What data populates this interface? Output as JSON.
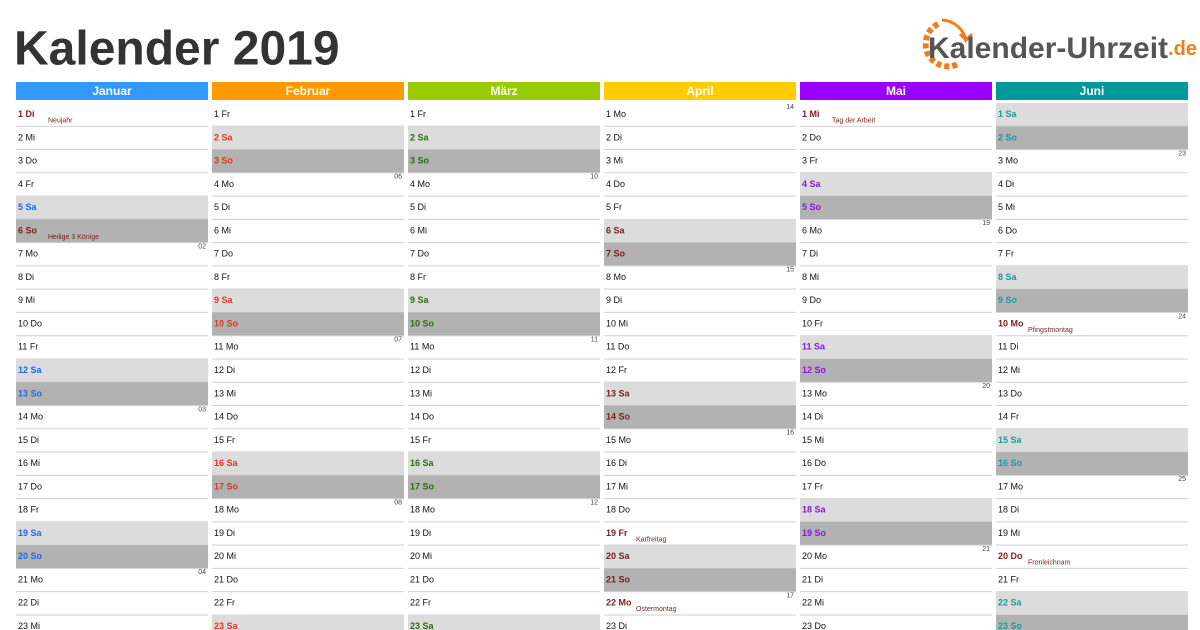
{
  "header": {
    "title": "Kalender 2019",
    "logo": "Kalender-Uhrzeit",
    "logo_suffix": ".de"
  },
  "months": [
    {
      "name": "Januar",
      "color": "#3399ff",
      "weekend_color": "#2266ee",
      "days": [
        "1 Di",
        "2 Mi",
        "3 Do",
        "4 Fr",
        "5 Sa",
        "6 So",
        "7 Mo",
        "8 Di",
        "9 Mi",
        "10 Do",
        "11 Fr",
        "12 Sa",
        "13 So",
        "14 Mo",
        "15 Di",
        "16 Mi",
        "17 Do",
        "18 Fr",
        "19 Sa",
        "20 So",
        "21 Mo",
        "22 Di",
        "23 Mi"
      ],
      "notes": {
        "0": "Neujahr",
        "5": "Heilige 3 Könige"
      },
      "weeks": {
        "6": "02",
        "13": "03",
        "20": "04"
      }
    },
    {
      "name": "Februar",
      "color": "#ff9900",
      "weekend_color": "#e8341c",
      "days": [
        "1 Fr",
        "2 Sa",
        "3 So",
        "4 Mo",
        "5 Di",
        "6 Mi",
        "7 Do",
        "8 Fr",
        "9 Sa",
        "10 So",
        "11 Mo",
        "12 Di",
        "13 Mi",
        "14 Do",
        "15 Fr",
        "16 Sa",
        "17 So",
        "18 Mo",
        "19 Di",
        "20 Mi",
        "21 Do",
        "22 Fr",
        "23 Sa"
      ],
      "notes": {},
      "weeks": {
        "3": "06",
        "10": "07",
        "17": "08"
      }
    },
    {
      "name": "März",
      "color": "#99cc00",
      "weekend_color": "#2e6b14",
      "days": [
        "1 Fr",
        "2 Sa",
        "3 So",
        "4 Mo",
        "5 Di",
        "6 Mi",
        "7 Do",
        "8 Fr",
        "9 Sa",
        "10 So",
        "11 Mo",
        "12 Di",
        "13 Mi",
        "14 Do",
        "15 Fr",
        "16 Sa",
        "17 So",
        "18 Mo",
        "19 Di",
        "20 Mi",
        "21 Do",
        "22 Fr",
        "23 Sa"
      ],
      "notes": {},
      "weeks": {
        "3": "10",
        "10": "11",
        "17": "12"
      }
    },
    {
      "name": "April",
      "color": "#ffcc00",
      "weekend_color": "#7a1f1f",
      "days": [
        "1 Mo",
        "2 Di",
        "3 Mi",
        "4 Do",
        "5 Fr",
        "6 Sa",
        "7 So",
        "8 Mo",
        "9 Di",
        "10 Mi",
        "11 Do",
        "12 Fr",
        "13 Sa",
        "14 So",
        "15 Mo",
        "16 Di",
        "17 Mi",
        "18 Do",
        "19 Fr",
        "20 Sa",
        "21 So",
        "22 Mo",
        "23 Di"
      ],
      "notes": {
        "18": "Karfreitag",
        "21": "Ostermontag"
      },
      "weeks": {
        "0": "14",
        "7": "15",
        "14": "16",
        "21": "17"
      }
    },
    {
      "name": "Mai",
      "color": "#9900ff",
      "weekend_color": "#8a16d8",
      "days": [
        "1 Mi",
        "2 Do",
        "3 Fr",
        "4 Sa",
        "5 So",
        "6 Mo",
        "7 Di",
        "8 Mi",
        "9 Do",
        "10 Fr",
        "11 Sa",
        "12 So",
        "13 Mo",
        "14 Di",
        "15 Mi",
        "16 Do",
        "17 Fr",
        "18 Sa",
        "19 So",
        "20 Mo",
        "21 Di",
        "22 Mi",
        "23 Do"
      ],
      "notes": {
        "0": "Tag der Arbeit"
      },
      "weeks": {
        "5": "19",
        "12": "20",
        "19": "21"
      }
    },
    {
      "name": "Juni",
      "color": "#009999",
      "weekend_color": "#1a9a9a",
      "days": [
        "1 Sa",
        "2 So",
        "3 Mo",
        "4 Di",
        "5 Mi",
        "6 Do",
        "7 Fr",
        "8 Sa",
        "9 So",
        "10 Mo",
        "11 Di",
        "12 Mi",
        "13 Do",
        "14 Fr",
        "15 Sa",
        "16 So",
        "17 Mo",
        "18 Di",
        "19 Mi",
        "20 Do",
        "21 Fr",
        "22 Sa",
        "23 So"
      ],
      "notes": {
        "9": "Pfingstmontag",
        "19": "Fronleichnam"
      },
      "weeks": {
        "2": "23",
        "9": "24",
        "16": "25"
      }
    }
  ]
}
